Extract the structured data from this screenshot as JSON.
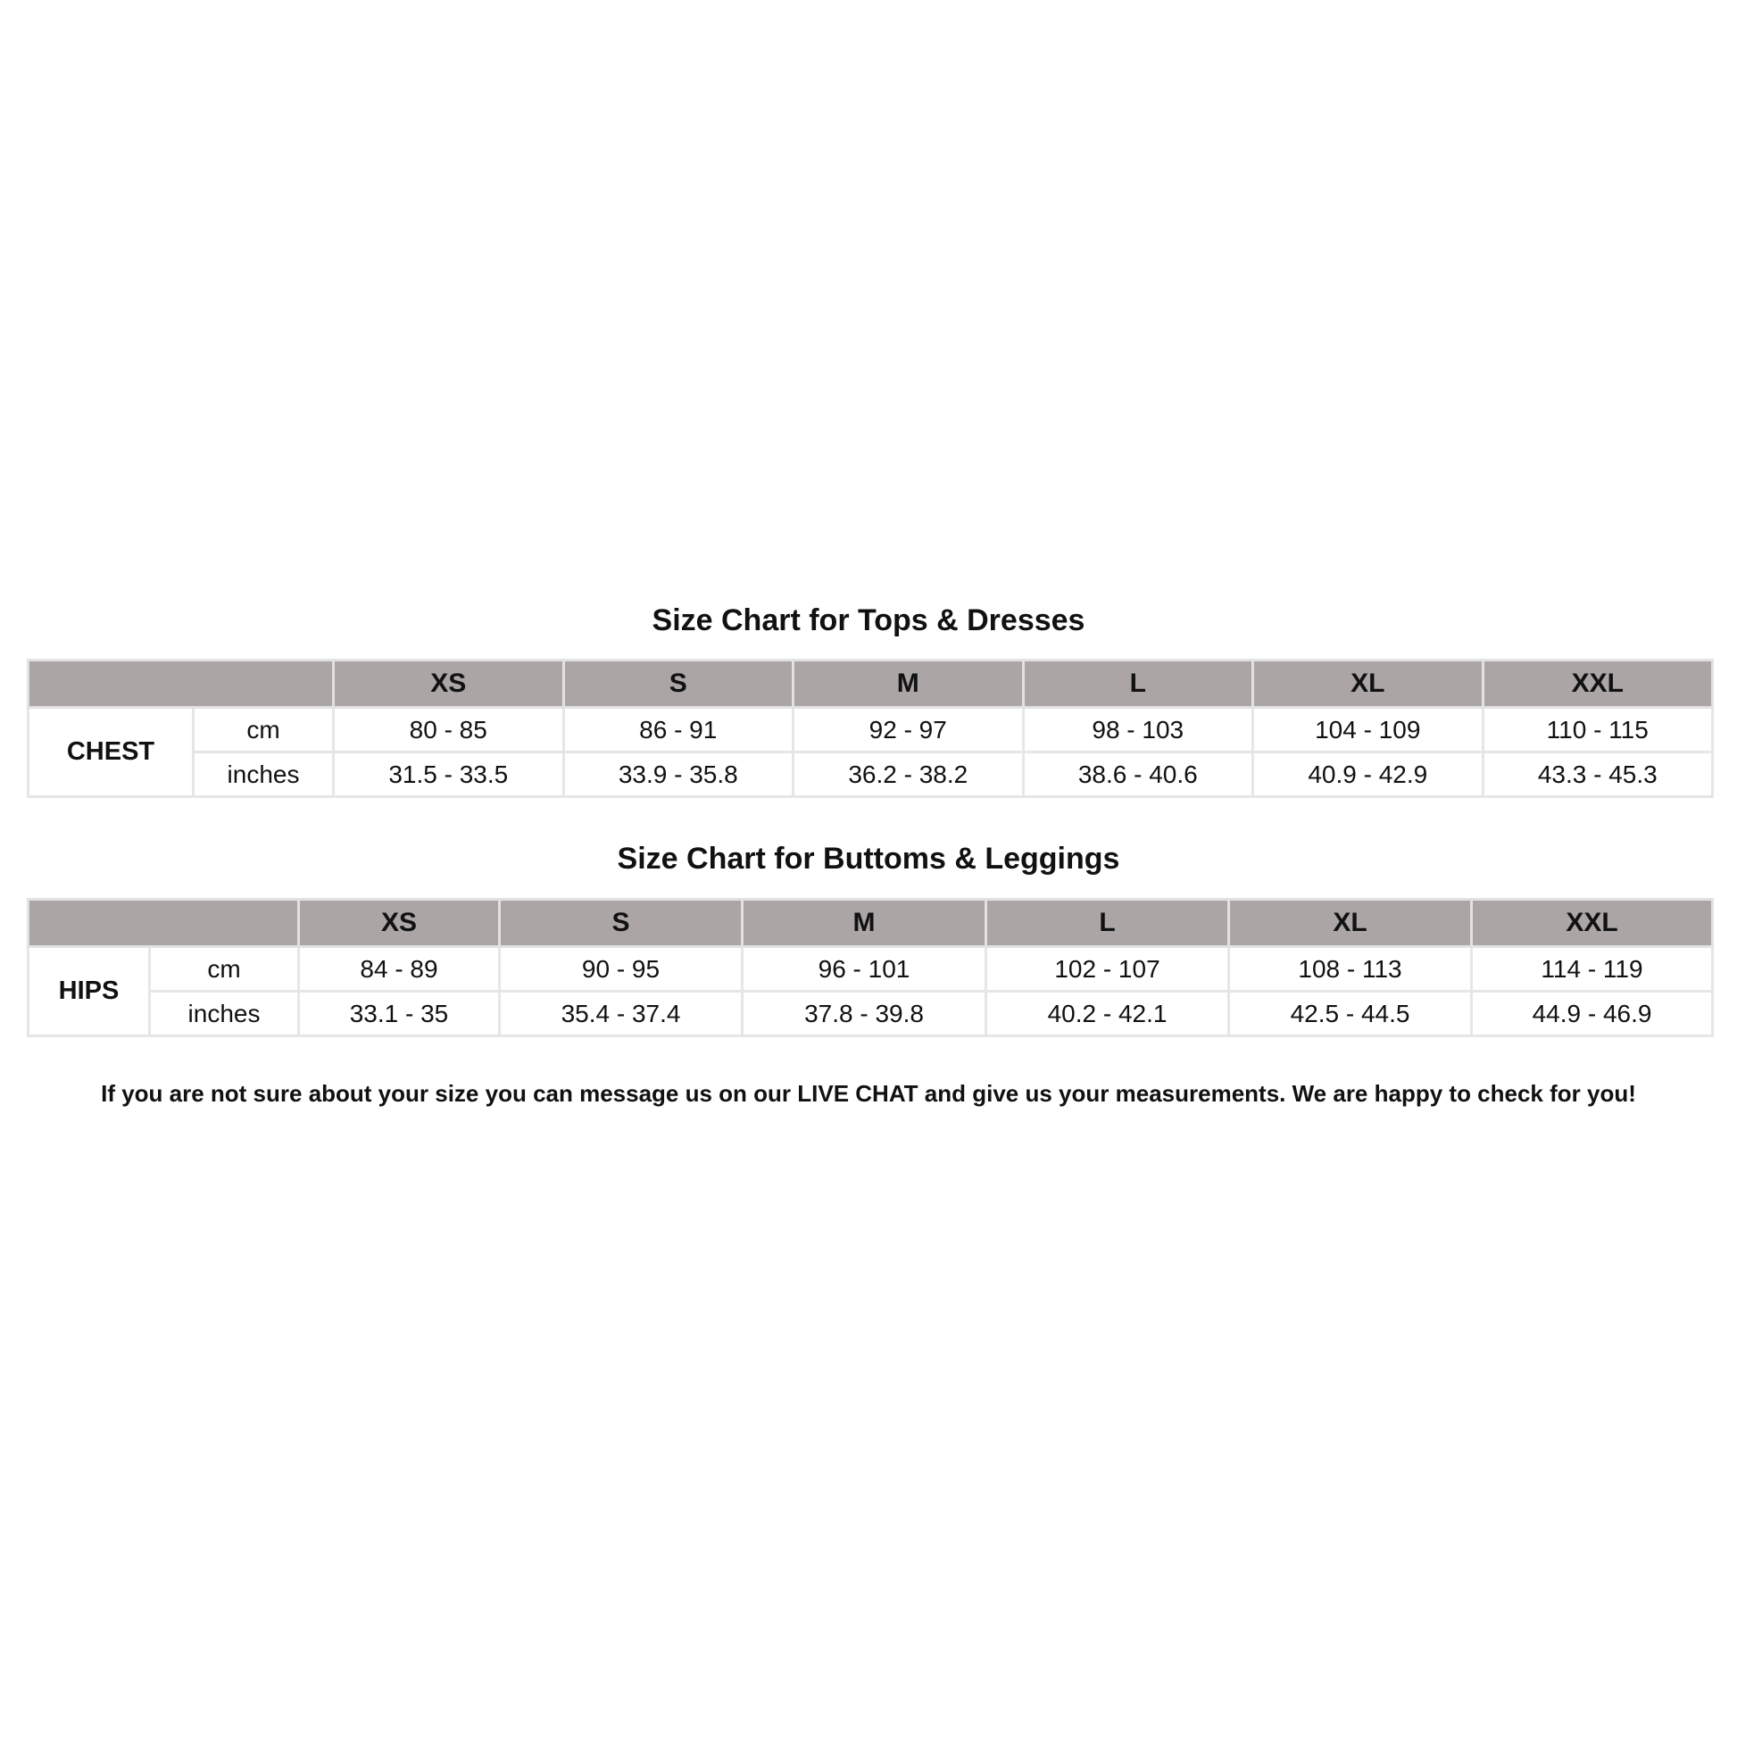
{
  "tops": {
    "title": "Size Chart for Tops & Dresses",
    "sizes": [
      "XS",
      "S",
      "M",
      "L",
      "XL",
      "XXL"
    ],
    "measurement": "CHEST",
    "rows": [
      {
        "unit": "cm",
        "values": [
          "80 - 85",
          "86 - 91",
          "92 - 97",
          "98 - 103",
          "104 - 109",
          "110 - 115"
        ]
      },
      {
        "unit": "inches",
        "values": [
          "31.5 - 33.5",
          "33.9 - 35.8",
          "36.2 - 38.2",
          "38.6 - 40.6",
          "40.9 - 42.9",
          "43.3 - 45.3"
        ]
      }
    ]
  },
  "bottoms": {
    "title": "Size Chart for Buttoms & Leggings",
    "sizes": [
      "XS",
      "S",
      "M",
      "L",
      "XL",
      "XXL"
    ],
    "measurement": "HIPS",
    "rows": [
      {
        "unit": "cm",
        "values": [
          "84 - 89",
          "90 - 95",
          "96 - 101",
          "102 - 107",
          "108 - 113",
          "114 - 119"
        ]
      },
      {
        "unit": "inches",
        "values": [
          "33.1 - 35",
          "35.4 - 37.4",
          "37.8 - 39.8",
          "40.2 - 42.1",
          "42.5 - 44.5",
          "44.9 - 46.9"
        ]
      }
    ]
  },
  "footer": "If you are not sure about your size you can message us on our LIVE CHAT and give us your measurements. We are happy to check for you!",
  "colors": {
    "header_bg": "#aba5a5",
    "border": "#e6e6e6",
    "text": "#111111"
  }
}
